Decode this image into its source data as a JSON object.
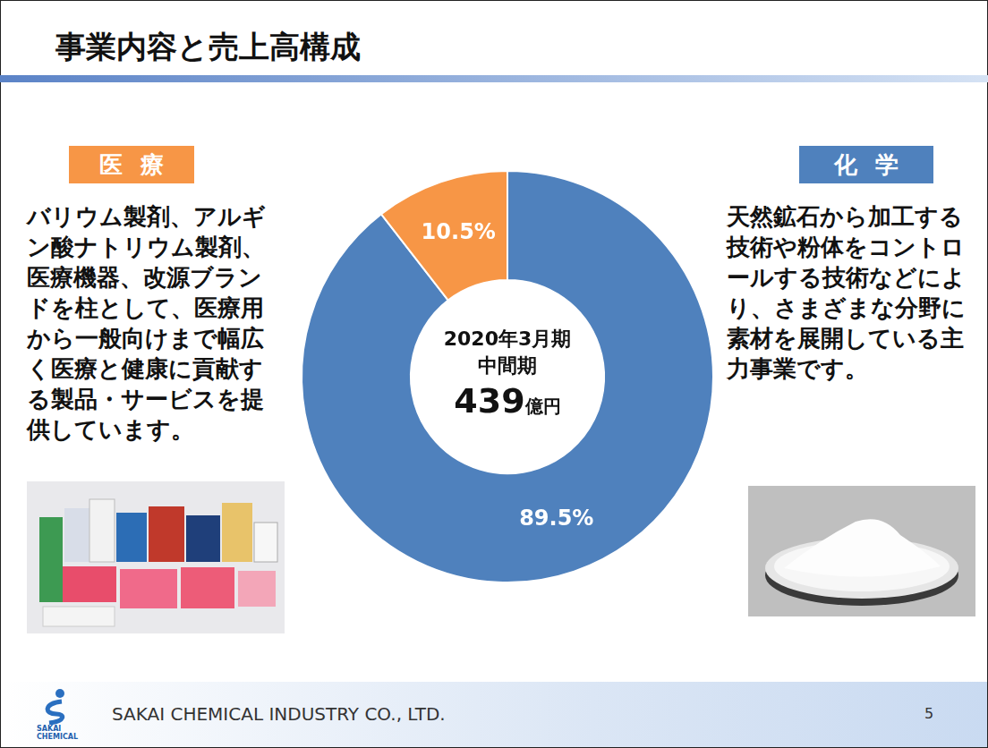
{
  "slide": {
    "title": "事業内容と売上高構成",
    "panel_texts": [
      "天然鉱石から加工する技術や粉体をコントロールする技術などにより、さまざまな分野に素材を展開している主力事業です。",
      "バリウム製剤、アルギン酸ナトリウム製剤、医療機器、改源ブランドを柱として、医療用から一般向けまで幅広く医療と健康に貢献する製品・サービスを提供しています。"
    ],
    "footer": {
      "company": "SAKAI CHEMICAL INDUSTRY CO., LTD.",
      "logo_text": "SAKAI CHEMICAL",
      "page": 5
    }
  },
  "chart_data": {
    "type": "doughnut",
    "categories": [
      "化学",
      "医療"
    ],
    "values": [
      89.5,
      10.5
    ],
    "value_labels": [
      "89.5%",
      "10.5%"
    ],
    "colors": [
      "#4f81bd",
      "#f79646"
    ],
    "data_labels": true,
    "center_lines": [
      "2020年3月期",
      "中間期"
    ],
    "total": {
      "value": 439,
      "unit": "億円"
    }
  }
}
